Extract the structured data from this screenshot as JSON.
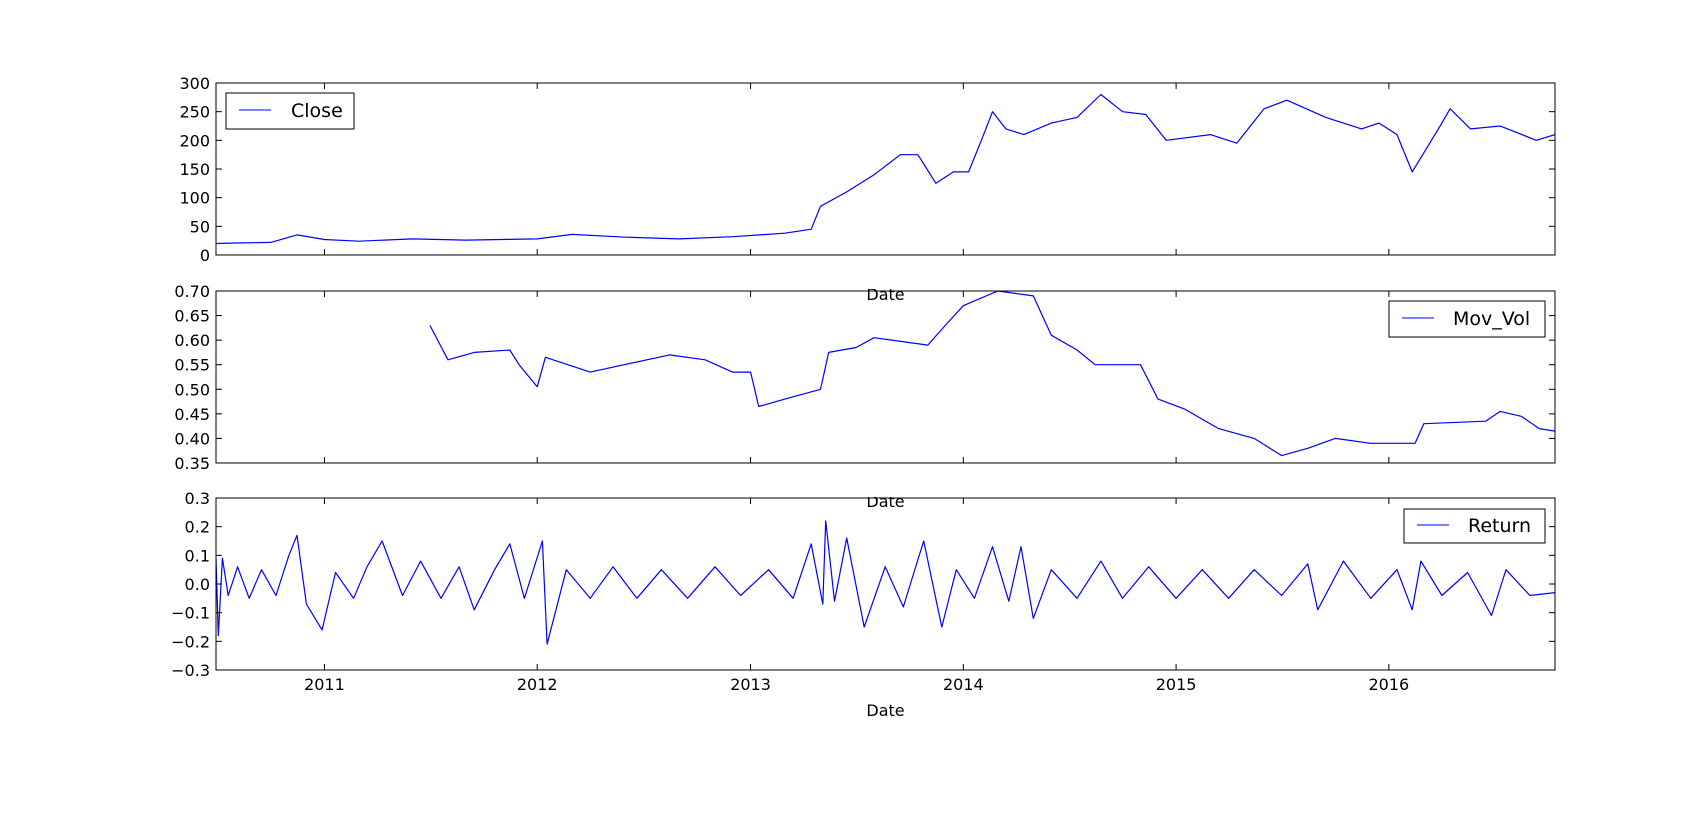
{
  "figure": {
    "line_color": "#0000ff",
    "axis_color": "#000000",
    "background": "#ffffff"
  },
  "chart_data": [
    {
      "type": "line",
      "xlabel": "Date",
      "ylabel": "",
      "xlim": [
        "2010-06-29",
        "2016-10-12"
      ],
      "ylim": [
        0,
        300
      ],
      "yticks": [
        "0",
        "50",
        "100",
        "150",
        "200",
        "250",
        "300"
      ],
      "xticks": [
        "2011",
        "2012",
        "2013",
        "2014",
        "2015",
        "2016"
      ],
      "legend": "top-left",
      "grid": false,
      "series": [
        {
          "name": "Close",
          "points": [
            [
              "2010-06-29",
              20
            ],
            [
              "2010-08-01",
              21
            ],
            [
              "2010-10-01",
              22
            ],
            [
              "2010-11-15",
              35
            ],
            [
              "2011-01-01",
              27
            ],
            [
              "2011-03-01",
              24
            ],
            [
              "2011-06-01",
              28
            ],
            [
              "2011-09-01",
              26
            ],
            [
              "2011-11-01",
              27
            ],
            [
              "2012-01-01",
              28
            ],
            [
              "2012-03-01",
              36
            ],
            [
              "2012-06-01",
              31
            ],
            [
              "2012-09-01",
              28
            ],
            [
              "2012-12-01",
              32
            ],
            [
              "2013-03-01",
              38
            ],
            [
              "2013-04-15",
              45
            ],
            [
              "2013-05-01",
              85
            ],
            [
              "2013-06-15",
              110
            ],
            [
              "2013-08-01",
              140
            ],
            [
              "2013-09-15",
              175
            ],
            [
              "2013-10-15",
              175
            ],
            [
              "2013-11-15",
              125
            ],
            [
              "2013-12-15",
              145
            ],
            [
              "2014-01-10",
              145
            ],
            [
              "2014-02-01",
              200
            ],
            [
              "2014-02-20",
              250
            ],
            [
              "2014-03-15",
              220
            ],
            [
              "2014-04-15",
              210
            ],
            [
              "2014-06-01",
              230
            ],
            [
              "2014-07-15",
              240
            ],
            [
              "2014-08-25",
              280
            ],
            [
              "2014-10-01",
              250
            ],
            [
              "2014-11-10",
              245
            ],
            [
              "2014-12-15",
              200
            ],
            [
              "2015-03-01",
              210
            ],
            [
              "2015-04-15",
              195
            ],
            [
              "2015-06-01",
              255
            ],
            [
              "2015-07-10",
              270
            ],
            [
              "2015-09-15",
              240
            ],
            [
              "2015-11-15",
              220
            ],
            [
              "2015-12-15",
              230
            ],
            [
              "2016-01-15",
              210
            ],
            [
              "2016-02-10",
              145
            ],
            [
              "2016-04-01",
              230
            ],
            [
              "2016-04-15",
              255
            ],
            [
              "2016-05-20",
              220
            ],
            [
              "2016-07-10",
              225
            ],
            [
              "2016-09-10",
              200
            ],
            [
              "2016-10-12",
              210
            ]
          ]
        }
      ]
    },
    {
      "type": "line",
      "xlabel": "Date",
      "ylabel": "",
      "xlim": [
        "2010-06-29",
        "2016-10-12"
      ],
      "ylim": [
        0.35,
        0.7
      ],
      "yticks": [
        "0.35",
        "0.40",
        "0.45",
        "0.50",
        "0.55",
        "0.60",
        "0.65",
        "0.70"
      ],
      "xticks": [
        "2011",
        "2012",
        "2013",
        "2014",
        "2015",
        "2016"
      ],
      "legend": "top-right",
      "grid": false,
      "series": [
        {
          "name": "Mov_Vol",
          "points": [
            [
              "2011-07-01",
              0.63
            ],
            [
              "2011-08-01",
              0.56
            ],
            [
              "2011-09-15",
              0.575
            ],
            [
              "2011-11-15",
              0.58
            ],
            [
              "2011-12-01",
              0.55
            ],
            [
              "2012-01-01",
              0.505
            ],
            [
              "2012-01-15",
              0.565
            ],
            [
              "2012-04-01",
              0.535
            ],
            [
              "2012-08-15",
              0.57
            ],
            [
              "2012-10-15",
              0.56
            ],
            [
              "2012-12-01",
              0.535
            ],
            [
              "2013-01-01",
              0.535
            ],
            [
              "2013-01-15",
              0.465
            ],
            [
              "2013-03-01",
              0.48
            ],
            [
              "2013-05-01",
              0.5
            ],
            [
              "2013-05-15",
              0.575
            ],
            [
              "2013-07-01",
              0.585
            ],
            [
              "2013-08-01",
              0.605
            ],
            [
              "2013-11-01",
              0.59
            ],
            [
              "2013-12-01",
              0.63
            ],
            [
              "2014-01-01",
              0.67
            ],
            [
              "2014-03-01",
              0.7
            ],
            [
              "2014-05-01",
              0.69
            ],
            [
              "2014-06-01",
              0.61
            ],
            [
              "2014-07-15",
              0.58
            ],
            [
              "2014-08-15",
              0.55
            ],
            [
              "2014-11-01",
              0.55
            ],
            [
              "2014-12-01",
              0.48
            ],
            [
              "2015-01-15",
              0.46
            ],
            [
              "2015-03-15",
              0.42
            ],
            [
              "2015-05-15",
              0.4
            ],
            [
              "2015-07-01",
              0.365
            ],
            [
              "2015-08-15",
              0.38
            ],
            [
              "2015-10-01",
              0.4
            ],
            [
              "2015-12-01",
              0.39
            ],
            [
              "2016-02-15",
              0.39
            ],
            [
              "2016-03-01",
              0.43
            ],
            [
              "2016-06-15",
              0.435
            ],
            [
              "2016-07-10",
              0.455
            ],
            [
              "2016-08-15",
              0.445
            ],
            [
              "2016-09-15",
              0.42
            ],
            [
              "2016-10-12",
              0.415
            ]
          ]
        }
      ]
    },
    {
      "type": "line",
      "xlabel": "Date",
      "ylabel": "",
      "xlim": [
        "2010-06-29",
        "2016-10-12"
      ],
      "ylim": [
        -0.3,
        0.3
      ],
      "yticks": [
        "−0.3",
        "−0.2",
        "−0.1",
        "0.0",
        "0.1",
        "0.2",
        "0.3"
      ],
      "xticks": [
        "2011",
        "2012",
        "2013",
        "2014",
        "2015",
        "2016"
      ],
      "legend": "top-right",
      "grid": false,
      "series": [
        {
          "name": "Return",
          "points": [
            [
              "2010-06-29",
              0.09
            ],
            [
              "2010-07-03",
              -0.18
            ],
            [
              "2010-07-10",
              0.09
            ],
            [
              "2010-07-20",
              -0.04
            ],
            [
              "2010-08-05",
              0.06
            ],
            [
              "2010-08-25",
              -0.05
            ],
            [
              "2010-09-15",
              0.05
            ],
            [
              "2010-10-10",
              -0.04
            ],
            [
              "2010-11-01",
              0.1
            ],
            [
              "2010-11-15",
              0.17
            ],
            [
              "2010-12-01",
              -0.07
            ],
            [
              "2010-12-28",
              -0.16
            ],
            [
              "2011-01-20",
              0.04
            ],
            [
              "2011-02-20",
              -0.05
            ],
            [
              "2011-03-15",
              0.06
            ],
            [
              "2011-04-10",
              0.15
            ],
            [
              "2011-05-15",
              -0.04
            ],
            [
              "2011-06-15",
              0.08
            ],
            [
              "2011-07-20",
              -0.05
            ],
            [
              "2011-08-20",
              0.06
            ],
            [
              "2011-09-15",
              -0.09
            ],
            [
              "2011-10-20",
              0.05
            ],
            [
              "2011-11-15",
              0.14
            ],
            [
              "2011-12-10",
              -0.05
            ],
            [
              "2012-01-10",
              0.15
            ],
            [
              "2012-01-18",
              -0.21
            ],
            [
              "2012-02-20",
              0.05
            ],
            [
              "2012-04-01",
              -0.05
            ],
            [
              "2012-05-10",
              0.06
            ],
            [
              "2012-06-20",
              -0.05
            ],
            [
              "2012-08-01",
              0.05
            ],
            [
              "2012-09-15",
              -0.05
            ],
            [
              "2012-11-01",
              0.06
            ],
            [
              "2012-12-15",
              -0.04
            ],
            [
              "2013-02-01",
              0.05
            ],
            [
              "2013-03-15",
              -0.05
            ],
            [
              "2013-04-15",
              0.14
            ],
            [
              "2013-05-05",
              -0.07
            ],
            [
              "2013-05-10",
              0.22
            ],
            [
              "2013-05-25",
              -0.06
            ],
            [
              "2013-06-15",
              0.16
            ],
            [
              "2013-07-15",
              -0.15
            ],
            [
              "2013-08-20",
              0.06
            ],
            [
              "2013-09-20",
              -0.08
            ],
            [
              "2013-10-25",
              0.15
            ],
            [
              "2013-11-25",
              -0.15
            ],
            [
              "2013-12-20",
              0.05
            ],
            [
              "2014-01-20",
              -0.05
            ],
            [
              "2014-02-20",
              0.13
            ],
            [
              "2014-03-20",
              -0.06
            ],
            [
              "2014-04-10",
              0.13
            ],
            [
              "2014-05-01",
              -0.12
            ],
            [
              "2014-06-01",
              0.05
            ],
            [
              "2014-07-15",
              -0.05
            ],
            [
              "2014-08-25",
              0.08
            ],
            [
              "2014-10-01",
              -0.05
            ],
            [
              "2014-11-15",
              0.06
            ],
            [
              "2015-01-01",
              -0.05
            ],
            [
              "2015-02-15",
              0.05
            ],
            [
              "2015-04-01",
              -0.05
            ],
            [
              "2015-05-15",
              0.05
            ],
            [
              "2015-07-01",
              -0.04
            ],
            [
              "2015-08-15",
              0.07
            ],
            [
              "2015-09-01",
              -0.09
            ],
            [
              "2015-10-15",
              0.08
            ],
            [
              "2015-12-01",
              -0.05
            ],
            [
              "2016-01-15",
              0.05
            ],
            [
              "2016-02-10",
              -0.09
            ],
            [
              "2016-02-25",
              0.08
            ],
            [
              "2016-04-01",
              -0.04
            ],
            [
              "2016-05-15",
              0.04
            ],
            [
              "2016-06-25",
              -0.11
            ],
            [
              "2016-07-20",
              0.05
            ],
            [
              "2016-08-30",
              -0.04
            ],
            [
              "2016-10-12",
              -0.03
            ]
          ]
        }
      ]
    }
  ]
}
